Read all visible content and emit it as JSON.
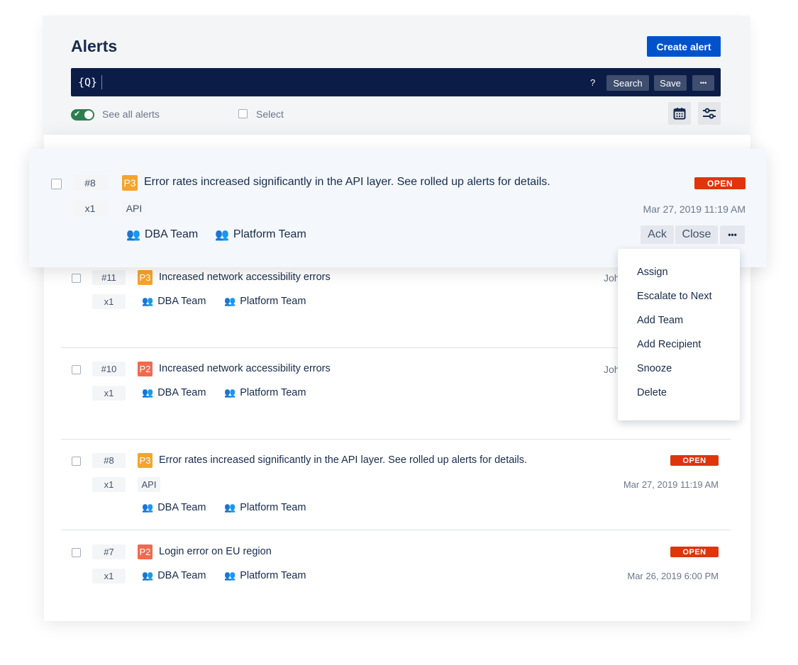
{
  "header": {
    "title": "Alerts",
    "create_label": "Create alert",
    "search_icon": "{Q}",
    "help": "?",
    "search_label": "Search",
    "save_label": "Save",
    "more_label": "•••",
    "see_all_label": "See all alerts",
    "see_all_on": true,
    "select_label": "Select"
  },
  "colors": {
    "accent": "#0052cc",
    "searchbar": "#0b1d47",
    "p3": "#f6a42d",
    "p2": "#f06a4d",
    "open": "#de350b",
    "toggle": "#2e7d4f"
  },
  "focused_alert": {
    "id": "#8",
    "priority": "P3",
    "message": "Error rates increased significantly in the API layer. See rolled up alerts for details.",
    "status": "OPEN",
    "count": "x1",
    "tags": [
      "API"
    ],
    "date": "Mar 27, 2019 11:19 AM",
    "teams": [
      "DBA Team",
      "Platform Team"
    ],
    "actions": {
      "ack": "Ack",
      "close": "Close",
      "more": "•••"
    }
  },
  "alerts": [
    {
      "id": "#11",
      "priority": "P3",
      "message": "Increased network accessibility errors",
      "count": "x1",
      "owner": "Joh",
      "teams": [
        "DBA Team",
        "Platform Team"
      ]
    },
    {
      "id": "#10",
      "priority": "P2",
      "message": "Increased network accessibility errors",
      "count": "x1",
      "owner": "Joh",
      "teams": [
        "DBA Team",
        "Platform Team"
      ]
    },
    {
      "id": "#8",
      "priority": "P3",
      "message": "Error rates increased significantly in the API layer. See rolled up alerts for details.",
      "status": "OPEN",
      "count": "x1",
      "tags": [
        "API"
      ],
      "date": "Mar 27, 2019 11:19 AM",
      "teams": [
        "DBA Team",
        "Platform Team"
      ]
    },
    {
      "id": "#7",
      "priority": "P2",
      "message": "Login error on EU region",
      "status": "OPEN",
      "count": "x1",
      "date": "Mar 26, 2019 6:00 PM",
      "teams": [
        "DBA Team",
        "Platform Team"
      ]
    }
  ],
  "menu": {
    "items": [
      "Assign",
      "Escalate to Next",
      "Add Team",
      "Add Recipient",
      "Snooze",
      "Delete"
    ]
  }
}
